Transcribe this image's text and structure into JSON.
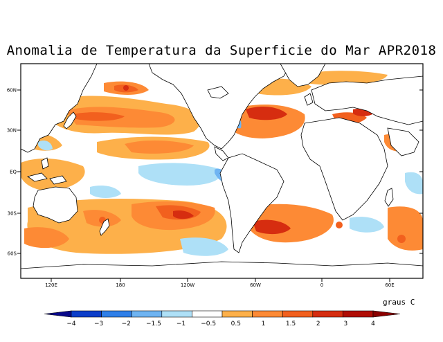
{
  "title": "Anomalia de Temperatura da Superficie do Mar APR2018",
  "lat_ticks": [
    "60N",
    "30N",
    "EQ",
    "30S",
    "60S"
  ],
  "lon_ticks": [
    "120E",
    "180",
    "120W",
    "60W",
    "0",
    "60E"
  ],
  "colorbar": {
    "units": "graus C",
    "labels": [
      "-4",
      "-3",
      "-2",
      "-1.5",
      "-1",
      "-0.5",
      "0.5",
      "1",
      "1.5",
      "2",
      "3",
      "4"
    ],
    "colors": [
      "#08088a",
      "#0c3ec9",
      "#2f7fe8",
      "#6fb4f2",
      "#aee0f7",
      "#ffffff",
      "#fdb04a",
      "#fd8a35",
      "#f2601e",
      "#d62d10",
      "#b00d05",
      "#8a0000"
    ]
  },
  "colors": {
    "land": "#ffffff",
    "coast": "#000000",
    "frame": "#000000"
  }
}
